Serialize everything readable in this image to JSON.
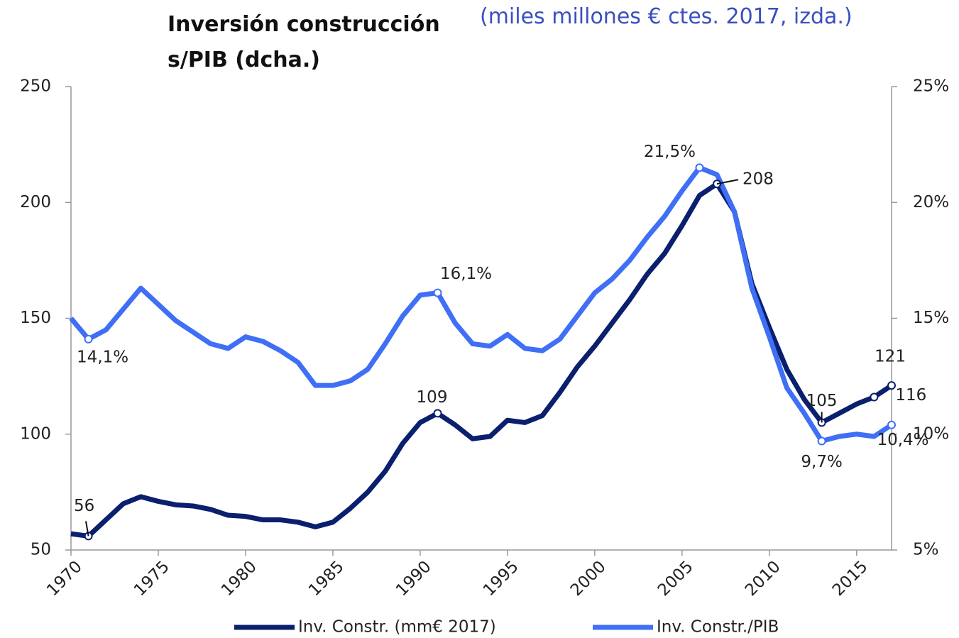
{
  "chart_data": {
    "type": "line",
    "title": "Inversión construcción s/PIB (dcha.)",
    "subtitle": "(miles millones € ctes. 2017, izda.)",
    "x": [
      1970,
      1971,
      1972,
      1973,
      1974,
      1975,
      1976,
      1977,
      1978,
      1979,
      1980,
      1981,
      1982,
      1983,
      1984,
      1985,
      1986,
      1987,
      1988,
      1989,
      1990,
      1991,
      1992,
      1993,
      1994,
      1995,
      1996,
      1997,
      1998,
      1999,
      2000,
      2001,
      2002,
      2003,
      2004,
      2005,
      2006,
      2007,
      2008,
      2009,
      2010,
      2011,
      2012,
      2013,
      2014,
      2015,
      2016,
      2017
    ],
    "xlim": [
      1970,
      2017
    ],
    "xticks": [
      1970,
      1975,
      1980,
      1985,
      1990,
      1995,
      2000,
      2005,
      2010,
      2015
    ],
    "ylim": [
      50,
      250
    ],
    "yticks": [
      50,
      100,
      150,
      200,
      250
    ],
    "y2lim": [
      5,
      25
    ],
    "y2ticks": [
      {
        "value": 5,
        "label": "5%"
      },
      {
        "value": 10,
        "label": "10%"
      },
      {
        "value": 15,
        "label": "15%"
      },
      {
        "value": 20,
        "label": "20%"
      },
      {
        "value": 25,
        "label": "25%"
      }
    ],
    "series": [
      {
        "name": "Inv. Constr. (mm€ 2017)",
        "color": "#0a1f6e",
        "axis": "y",
        "values": [
          57,
          56,
          63,
          70,
          73,
          71,
          69.5,
          69,
          67.5,
          65,
          64.5,
          63,
          63,
          62,
          60,
          62,
          68,
          75,
          84,
          96,
          105,
          109,
          104,
          98,
          99,
          106,
          105,
          108,
          118,
          129,
          138,
          148,
          158,
          169,
          178,
          190,
          203,
          208,
          196,
          165,
          146,
          128,
          115,
          105,
          109,
          113,
          116,
          121
        ],
        "value_labels": [
          null,
          "56",
          null,
          null,
          null,
          null,
          null,
          null,
          null,
          null,
          null,
          null,
          null,
          null,
          null,
          null,
          null,
          null,
          null,
          null,
          null,
          "109",
          null,
          null,
          null,
          null,
          null,
          null,
          null,
          null,
          null,
          null,
          null,
          null,
          null,
          null,
          null,
          "208",
          null,
          null,
          null,
          null,
          null,
          "105",
          null,
          null,
          "116",
          "121"
        ]
      },
      {
        "name": "Inv. Constr./PIB",
        "color": "#3f6ff5",
        "axis": "y2",
        "values": [
          15,
          14.1,
          14.5,
          15.4,
          16.3,
          15.6,
          14.9,
          14.4,
          13.9,
          13.7,
          14.2,
          14.0,
          13.6,
          13.1,
          12.1,
          12.1,
          12.3,
          12.8,
          13.9,
          15.1,
          16.0,
          16.1,
          14.8,
          13.9,
          13.8,
          14.3,
          13.7,
          13.6,
          14.1,
          15.1,
          16.1,
          16.7,
          17.5,
          18.5,
          19.4,
          20.5,
          21.5,
          21.2,
          19.6,
          16.3,
          14.2,
          12.0,
          10.9,
          9.7,
          9.9,
          10.0,
          9.9,
          10.4
        ],
        "value_labels": [
          null,
          "14,1%",
          null,
          null,
          null,
          null,
          null,
          null,
          null,
          null,
          null,
          null,
          null,
          null,
          null,
          null,
          null,
          null,
          null,
          null,
          null,
          "16,1%",
          null,
          null,
          null,
          null,
          null,
          null,
          null,
          null,
          null,
          null,
          null,
          null,
          null,
          null,
          "21,5%",
          null,
          null,
          null,
          null,
          null,
          null,
          "9,7%",
          null,
          null,
          null,
          "10,4%"
        ]
      }
    ],
    "legend": "bottom"
  }
}
